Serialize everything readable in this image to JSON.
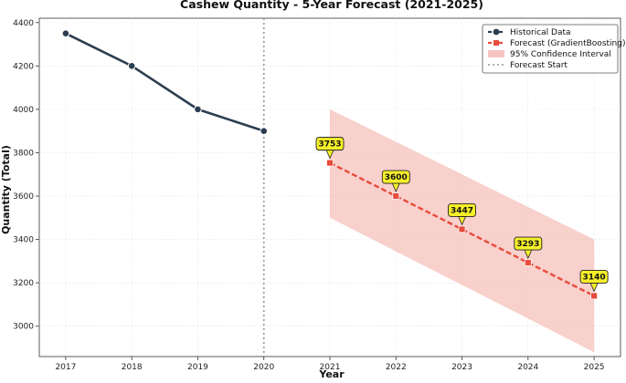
{
  "chart_data": {
    "type": "line",
    "title": "Cashew Quantity - 5-Year Forecast (2021-2025)",
    "xlabel": "Year",
    "ylabel": "Quantity (Total)",
    "xlim": [
      2016.6,
      2025.4
    ],
    "ylim": [
      2860,
      4420
    ],
    "x_ticks": [
      2017,
      2018,
      2019,
      2020,
      2021,
      2022,
      2023,
      2024,
      2025
    ],
    "y_ticks": [
      3000,
      3200,
      3400,
      3600,
      3800,
      4000,
      4200,
      4400
    ],
    "grid": true,
    "legend_position": "top-right",
    "series": [
      {
        "name": "Historical Data",
        "x": [
          2017,
          2018,
          2019,
          2020
        ],
        "values": [
          4350,
          4200,
          4000,
          3900
        ],
        "color": "#2c3e50"
      },
      {
        "name": "Forecast (GradientBoosting)",
        "x": [
          2021,
          2022,
          2023,
          2024,
          2025
        ],
        "values": [
          3753,
          3600,
          3447,
          3293,
          3140
        ],
        "labels": [
          "3753",
          "3600",
          "3447",
          "3293",
          "3140"
        ],
        "color": "#e74c3c"
      }
    ],
    "confidence_interval": {
      "name": "95% Confidence Interval",
      "x": [
        2021,
        2025
      ],
      "lower": [
        3500,
        2880
      ],
      "upper": [
        4000,
        3400
      ],
      "color": "#f5b7b1"
    },
    "forecast_start": {
      "name": "Forecast Start",
      "x": 2020
    }
  }
}
